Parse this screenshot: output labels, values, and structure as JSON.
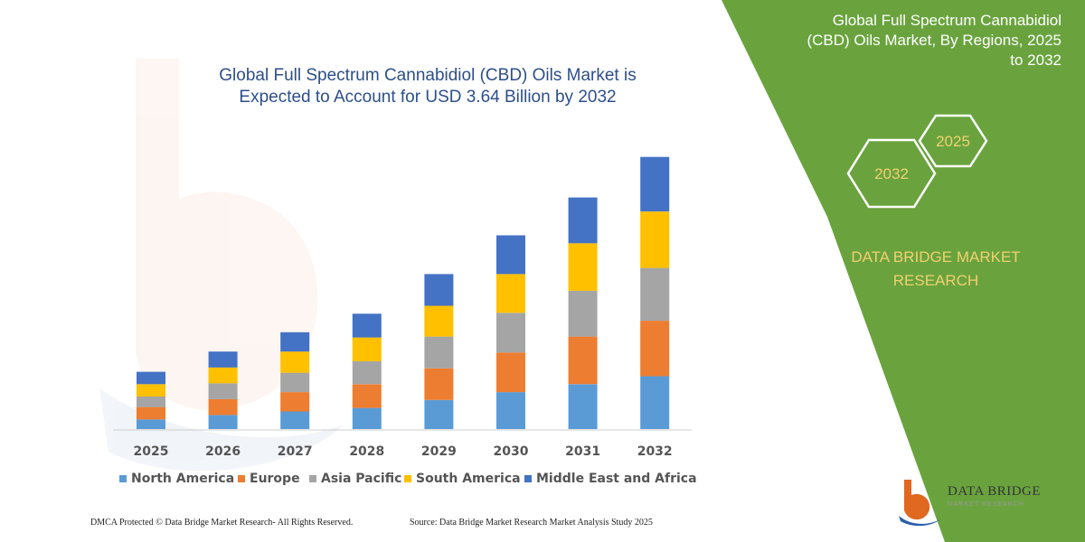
{
  "chart_data": {
    "type": "bar",
    "stacked": true,
    "title": "Global Full Spectrum Cannabidiol (CBD) Oils Market is Expected to Account for USD 3.64 Billion by 2032",
    "title_lines": [
      "Global Full Spectrum Cannabidiol (CBD) Oils Market is",
      "Expected to Account for USD 3.64 Billion by 2032"
    ],
    "categories": [
      "2025",
      "2026",
      "2027",
      "2028",
      "2029",
      "2030",
      "2031",
      "2032"
    ],
    "series": [
      {
        "name": "North America",
        "color": "#5b9bd5",
        "values": [
          11,
          16,
          20,
          24,
          33,
          42,
          51,
          60
        ]
      },
      {
        "name": "Europe",
        "color": "#ed7d31",
        "values": [
          14,
          18,
          22,
          27,
          36,
          45,
          54,
          63
        ]
      },
      {
        "name": "Asia Pacific",
        "color": "#a5a5a5",
        "values": [
          12,
          18,
          22,
          26,
          36,
          45,
          52,
          60
        ]
      },
      {
        "name": "South America",
        "color": "#ffc000",
        "values": [
          14,
          18,
          24,
          27,
          35,
          44,
          54,
          64
        ]
      },
      {
        "name": "Middle East and Africa",
        "color": "#4472c4",
        "values": [
          14,
          18,
          22,
          27,
          36,
          44,
          52,
          62
        ]
      }
    ],
    "ylim": [
      0,
      320
    ],
    "grid": false,
    "legend": "bottom",
    "xlabel": "",
    "ylabel": ""
  },
  "panel": {
    "title_lines": [
      "Global Full Spectrum Cannabidiol",
      "(CBD) Oils Market, By Regions, 2025",
      "to 2032"
    ],
    "hex_year_1": "2025",
    "hex_year_2": "2032",
    "brand_lines": [
      "DATA BRIDGE MARKET",
      "RESEARCH"
    ],
    "green": "#6aa33e",
    "accent": "#f0d070"
  },
  "footer": {
    "left": "DMCA Protected © Data Bridge Market Research-  All Rights Reserved.",
    "right": "Source: Data Bridge Market Research  Market Analysis Study 2025"
  },
  "logo": {
    "name": "DATA BRIDGE",
    "tagline": "MARKET RESEARCH",
    "icon": "data-bridge-logo-icon"
  }
}
